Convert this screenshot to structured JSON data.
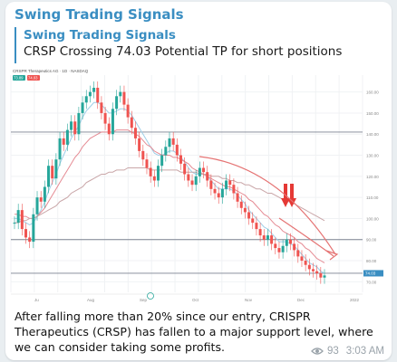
{
  "channel": {
    "name": "Swing Trading Signals"
  },
  "reply": {
    "title": "Swing Trading Signals",
    "text": "CRSP Crossing 74.03 Potential TP for short positions"
  },
  "chart_data": {
    "type": "line",
    "symbol_header": "CRSPR Therapeutics AG · 1D · NASDAQ",
    "price_badges": [
      "73.89",
      "74.03"
    ],
    "y_ticks": [
      "160.00",
      "150.00",
      "140.00",
      "130.00",
      "120.00",
      "110.00",
      "100.00",
      "90.00",
      "80.00",
      "70.00"
    ],
    "x_ticks": [
      "Ju",
      "Aug",
      "Sep",
      "Oct",
      "Nov",
      "Dec",
      "2022"
    ],
    "ylim": [
      65,
      168
    ],
    "support_level": 74.03,
    "resistance_level": 141,
    "mid_level": 90,
    "series": [
      {
        "name": "price",
        "values": [
          98,
          104,
          95,
          91,
          89,
          102,
          110,
          108,
          115,
          125,
          119,
          128,
          138,
          135,
          142,
          146,
          140,
          150,
          155,
          158,
          160,
          162,
          155,
          150,
          145,
          140,
          152,
          158,
          160,
          154,
          148,
          143,
          138,
          132,
          128,
          124,
          120,
          118,
          125,
          130,
          134,
          138,
          135,
          130,
          126,
          121,
          118,
          116,
          120,
          124,
          122,
          118,
          114,
          112,
          110,
          114,
          118,
          116,
          112,
          108,
          105,
          103,
          100,
          98,
          95,
          92,
          90,
          92,
          88,
          86,
          84,
          87,
          90,
          88,
          85,
          82,
          80,
          78,
          76,
          75,
          74,
          72,
          73
        ]
      },
      {
        "name": "ma-short",
        "values": [
          100,
          100,
          99,
          98,
          97,
          98,
          101,
          104,
          108,
          113,
          117,
          121,
          126,
          130,
          134,
          138,
          141,
          144,
          148,
          151,
          153,
          155,
          155,
          154,
          152,
          150,
          150,
          151,
          152,
          152,
          151,
          149,
          146,
          143,
          140,
          137,
          134,
          131,
          130,
          130,
          131,
          132,
          132,
          131,
          129,
          127,
          124,
          122,
          121,
          121,
          121,
          120,
          118,
          116,
          114,
          114,
          114,
          114,
          113,
          111,
          109,
          107,
          104,
          102,
          100,
          98,
          96,
          95,
          93,
          91,
          89,
          89,
          89,
          88,
          87,
          85,
          83,
          81,
          79,
          78,
          77,
          75,
          74
        ]
      },
      {
        "name": "ma-medium",
        "values": [
          102,
          102,
          101,
          101,
          100,
          100,
          101,
          103,
          105,
          108,
          111,
          114,
          117,
          120,
          123,
          126,
          129,
          131,
          134,
          136,
          138,
          139,
          140,
          141,
          141,
          141,
          141,
          142,
          142,
          142,
          142,
          141,
          140,
          139,
          137,
          135,
          134,
          132,
          131,
          130,
          130,
          130,
          129,
          129,
          128,
          127,
          126,
          124,
          123,
          122,
          121,
          120,
          119,
          118,
          117,
          116,
          115,
          115,
          114,
          113,
          112,
          111,
          109,
          108,
          106,
          104,
          102,
          101,
          99,
          97,
          96,
          94,
          93,
          92,
          91,
          89,
          88,
          86,
          85,
          83,
          81,
          80,
          79
        ]
      },
      {
        "name": "ma-long",
        "values": [
          98,
          98,
          99,
          99,
          100,
          100,
          101,
          102,
          103,
          104,
          105,
          106,
          108,
          109,
          110,
          112,
          113,
          114,
          115,
          117,
          118,
          119,
          120,
          121,
          121,
          122,
          122,
          123,
          123,
          123,
          124,
          124,
          124,
          124,
          124,
          124,
          123,
          123,
          123,
          123,
          123,
          123,
          123,
          123,
          122,
          122,
          122,
          122,
          122,
          121,
          121,
          121,
          120,
          120,
          120,
          119,
          119,
          118,
          118,
          117,
          117,
          116,
          116,
          115,
          114,
          114,
          113,
          112,
          112,
          111,
          110,
          109,
          108,
          108,
          107,
          106,
          105,
          104,
          103,
          102,
          101,
          100,
          99
        ]
      }
    ]
  },
  "caption": "After falling more than 20% since our entry, CRISPR Therapeutics (CRSP) has fallen to a major support level, where we can consider taking some profits.",
  "meta": {
    "views": "93",
    "time": "3:03 AM"
  },
  "colors": {
    "accent": "#3a8ec2",
    "up": "#26a69a",
    "down": "#ef5350"
  }
}
